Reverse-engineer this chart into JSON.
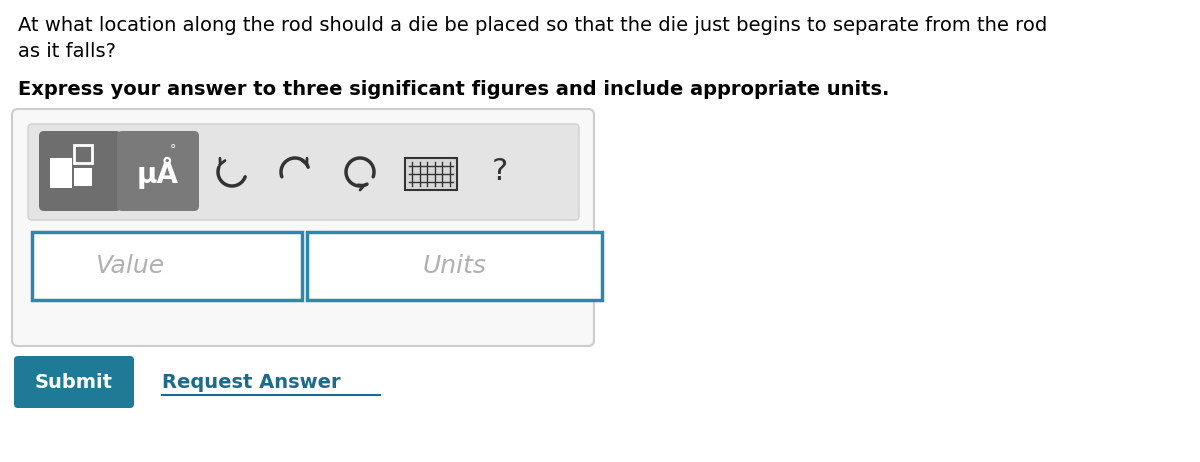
{
  "question_line1": "At what location along the rod should a die be placed so that the die just begins to separate from the rod",
  "question_line2": "as it falls?",
  "bold_text": "Express your answer to three significant figures and include appropriate units.",
  "value_placeholder": "Value",
  "units_placeholder": "Units",
  "submit_text": "Submit",
  "request_answer_text": "Request Answer",
  "bg_color": "#ffffff",
  "outer_box_edge": "#cccccc",
  "outer_box_fill": "#f8f8f8",
  "toolbar_bg": "#e4e4e4",
  "toolbar_edge": "#d0d0d0",
  "input_border_color": "#2e86a8",
  "submit_bg": "#1e7a96",
  "submit_text_color": "#ffffff",
  "request_answer_color": "#1e6a8a",
  "placeholder_color": "#b0b0b0",
  "question_fontsize": 14,
  "bold_fontsize": 14,
  "icon_btn1_bg_top": "#888888",
  "icon_btn1_bg_bot": "#5a5a5a",
  "icon_btn2_bg": "#7a7a7a",
  "icon_color": "#333333",
  "question_mark": "?"
}
